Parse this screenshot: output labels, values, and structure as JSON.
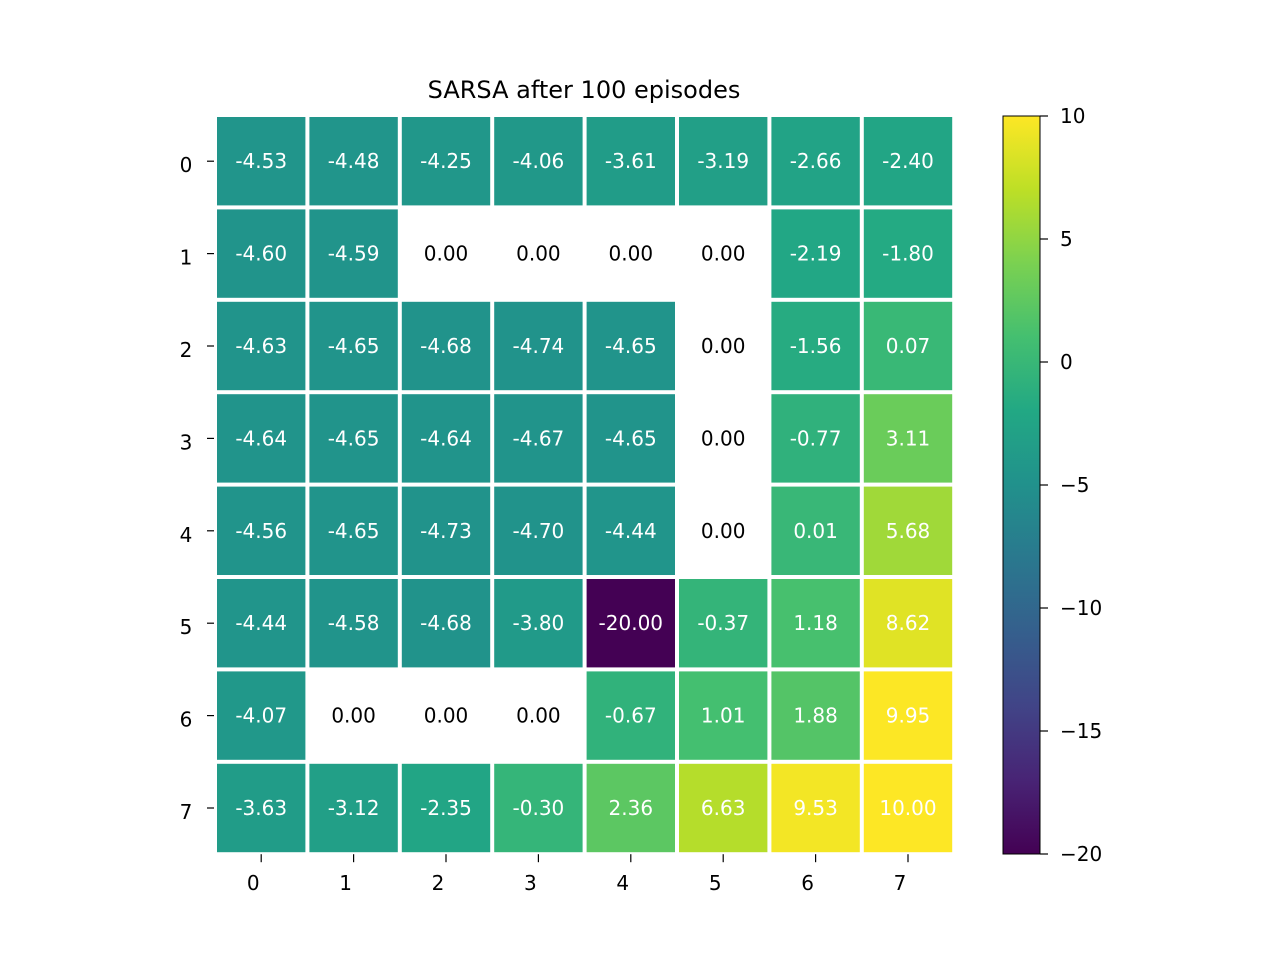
{
  "chart_data": {
    "type": "heatmap",
    "title": "SARSA after 100 episodes",
    "xlabel": "",
    "ylabel": "",
    "x_ticks": [
      "0",
      "1",
      "2",
      "3",
      "4",
      "5",
      "6",
      "7"
    ],
    "y_ticks": [
      "0",
      "1",
      "2",
      "3",
      "4",
      "5",
      "6",
      "7"
    ],
    "values": [
      [
        -4.53,
        -4.48,
        -4.25,
        -4.06,
        -3.61,
        -3.19,
        -2.66,
        -2.4
      ],
      [
        -4.6,
        -4.59,
        0.0,
        0.0,
        0.0,
        0.0,
        -2.19,
        -1.8
      ],
      [
        -4.63,
        -4.65,
        -4.68,
        -4.74,
        -4.65,
        0.0,
        -1.56,
        0.07
      ],
      [
        -4.64,
        -4.65,
        -4.64,
        -4.67,
        -4.65,
        0.0,
        -0.77,
        3.11
      ],
      [
        -4.56,
        -4.65,
        -4.73,
        -4.7,
        -4.44,
        0.0,
        0.01,
        5.68
      ],
      [
        -4.44,
        -4.58,
        -4.68,
        -3.8,
        -20.0,
        -0.37,
        1.18,
        8.62
      ],
      [
        -4.07,
        0.0,
        0.0,
        0.0,
        -0.67,
        1.01,
        1.88,
        9.95
      ],
      [
        -3.63,
        -3.12,
        -2.35,
        -0.3,
        2.36,
        6.63,
        9.53,
        10.0
      ]
    ],
    "masked_cells": [
      [
        1,
        2
      ],
      [
        1,
        3
      ],
      [
        1,
        4
      ],
      [
        1,
        5
      ],
      [
        2,
        5
      ],
      [
        3,
        5
      ],
      [
        4,
        5
      ],
      [
        6,
        1
      ],
      [
        6,
        2
      ],
      [
        6,
        3
      ]
    ],
    "value_format": "2 decimals",
    "colormap": "viridis",
    "vmin": -20,
    "vmax": 10,
    "colorbar_ticks": [
      10,
      5,
      0,
      -5,
      -10,
      -15,
      -20
    ],
    "colorbar_tick_labels": [
      "10",
      "5",
      "0",
      "−5",
      "−10",
      "−15",
      "−20"
    ],
    "grid": false,
    "cell_border_color": "#ffffff",
    "annotation_color_light": "#ffffff",
    "annotation_color_masked": "#000000"
  }
}
